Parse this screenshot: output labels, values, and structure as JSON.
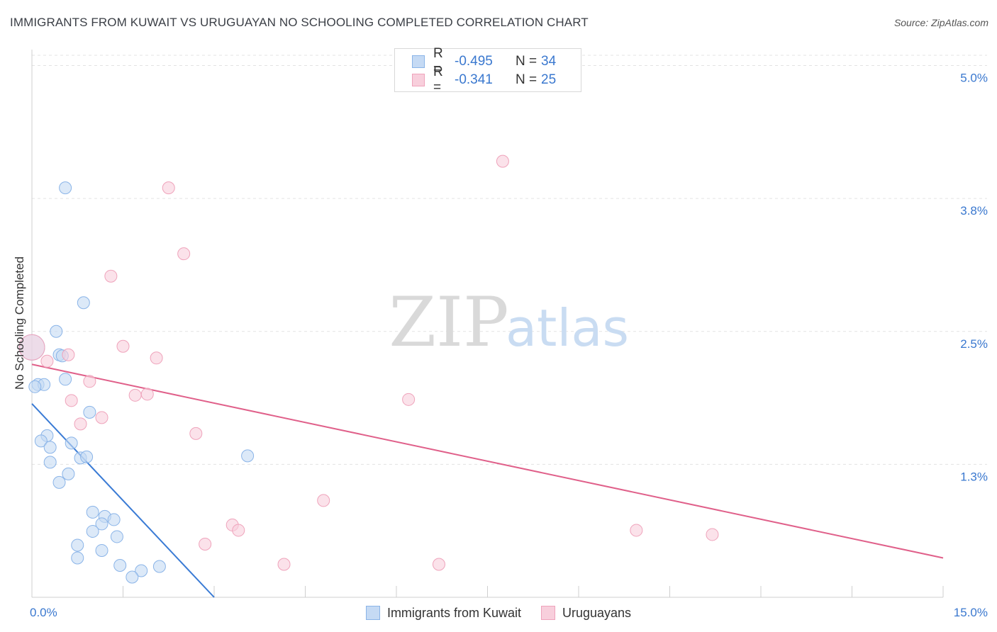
{
  "header": {
    "title": "IMMIGRANTS FROM KUWAIT VS URUGUAYAN NO SCHOOLING COMPLETED CORRELATION CHART",
    "source": "Source: ZipAtlas.com"
  },
  "watermark": {
    "zip": "ZIP",
    "atlas": "atlas"
  },
  "legend_top": {
    "rows": [
      {
        "r_label": "R =",
        "r_value": "-0.495",
        "n_label": "N =",
        "n_value": "34"
      },
      {
        "r_label": "R =",
        "r_value": "-0.341",
        "n_label": "N =",
        "n_value": "25"
      }
    ]
  },
  "legend_bottom": {
    "items": [
      {
        "label": "Immigrants from Kuwait"
      },
      {
        "label": "Uruguayans"
      }
    ]
  },
  "chart_data": {
    "type": "scatter",
    "title": "IMMIGRANTS FROM KUWAIT VS URUGUAYAN NO SCHOOLING COMPLETED CORRELATION CHART",
    "xlabel": "",
    "ylabel": "No Schooling Completed",
    "xlim": [
      0,
      15
    ],
    "ylim": [
      0,
      5.15
    ],
    "x_tick_labels": [
      {
        "value": 0,
        "label": "0.0%"
      },
      {
        "value": 15,
        "label": "15.0%"
      }
    ],
    "y_ticks": [
      {
        "value": 1.25,
        "label": "1.3%"
      },
      {
        "value": 2.5,
        "label": "2.5%"
      },
      {
        "value": 3.75,
        "label": "3.8%"
      },
      {
        "value": 5.0,
        "label": "5.0%"
      }
    ],
    "x_minor_ticks": [
      1.5,
      3,
      4.5,
      6,
      7.5,
      9,
      10.5,
      12,
      13.5,
      15
    ],
    "grid": true,
    "series": [
      {
        "name": "Immigrants from Kuwait",
        "color": "#8ab4e8",
        "fill": "#c5daf4",
        "line_color": "#3a7bd5",
        "trend": {
          "x0": 0.0,
          "y0": 1.82,
          "x1": 3.0,
          "y1": 0.0
        },
        "points": [
          {
            "x": 0.0,
            "y": 2.35,
            "size": "large"
          },
          {
            "x": 0.1,
            "y": 2.0
          },
          {
            "x": 0.2,
            "y": 2.0
          },
          {
            "x": 0.05,
            "y": 1.98
          },
          {
            "x": 0.55,
            "y": 3.85
          },
          {
            "x": 0.85,
            "y": 2.77
          },
          {
            "x": 0.4,
            "y": 2.5
          },
          {
            "x": 0.45,
            "y": 2.28
          },
          {
            "x": 0.5,
            "y": 2.27
          },
          {
            "x": 0.55,
            "y": 2.05
          },
          {
            "x": 0.95,
            "y": 1.74
          },
          {
            "x": 0.25,
            "y": 1.52
          },
          {
            "x": 0.15,
            "y": 1.47
          },
          {
            "x": 0.3,
            "y": 1.41
          },
          {
            "x": 0.65,
            "y": 1.45
          },
          {
            "x": 0.8,
            "y": 1.31
          },
          {
            "x": 0.9,
            "y": 1.32
          },
          {
            "x": 3.55,
            "y": 1.33
          },
          {
            "x": 0.3,
            "y": 1.27
          },
          {
            "x": 0.6,
            "y": 1.16
          },
          {
            "x": 0.45,
            "y": 1.08
          },
          {
            "x": 1.0,
            "y": 0.8
          },
          {
            "x": 1.2,
            "y": 0.76
          },
          {
            "x": 1.35,
            "y": 0.73
          },
          {
            "x": 1.15,
            "y": 0.69
          },
          {
            "x": 1.0,
            "y": 0.62
          },
          {
            "x": 1.4,
            "y": 0.57
          },
          {
            "x": 0.75,
            "y": 0.49
          },
          {
            "x": 1.15,
            "y": 0.44
          },
          {
            "x": 0.75,
            "y": 0.37
          },
          {
            "x": 1.45,
            "y": 0.3
          },
          {
            "x": 2.1,
            "y": 0.29
          },
          {
            "x": 1.8,
            "y": 0.25
          },
          {
            "x": 1.65,
            "y": 0.19
          }
        ]
      },
      {
        "name": "Uruguayans",
        "color": "#efa3bb",
        "fill": "#f8cfdc",
        "line_color": "#e0608a",
        "trend": {
          "x0": 0.0,
          "y0": 2.19,
          "x1": 15.0,
          "y1": 0.37
        },
        "points": [
          {
            "x": 0.0,
            "y": 2.35,
            "size": "large"
          },
          {
            "x": 7.75,
            "y": 4.1
          },
          {
            "x": 2.25,
            "y": 3.85
          },
          {
            "x": 2.5,
            "y": 3.23
          },
          {
            "x": 1.3,
            "y": 3.02
          },
          {
            "x": 1.5,
            "y": 2.36
          },
          {
            "x": 2.05,
            "y": 2.25
          },
          {
            "x": 0.6,
            "y": 2.28
          },
          {
            "x": 0.25,
            "y": 2.22
          },
          {
            "x": 0.95,
            "y": 2.03
          },
          {
            "x": 1.7,
            "y": 1.9
          },
          {
            "x": 1.9,
            "y": 1.91
          },
          {
            "x": 6.2,
            "y": 1.86
          },
          {
            "x": 0.65,
            "y": 1.85
          },
          {
            "x": 1.15,
            "y": 1.69
          },
          {
            "x": 0.8,
            "y": 1.63
          },
          {
            "x": 2.7,
            "y": 1.54
          },
          {
            "x": 4.8,
            "y": 0.91
          },
          {
            "x": 3.3,
            "y": 0.68
          },
          {
            "x": 3.4,
            "y": 0.63
          },
          {
            "x": 9.95,
            "y": 0.63
          },
          {
            "x": 11.2,
            "y": 0.59
          },
          {
            "x": 2.85,
            "y": 0.5
          },
          {
            "x": 4.15,
            "y": 0.31
          },
          {
            "x": 6.7,
            "y": 0.31
          }
        ]
      }
    ]
  }
}
